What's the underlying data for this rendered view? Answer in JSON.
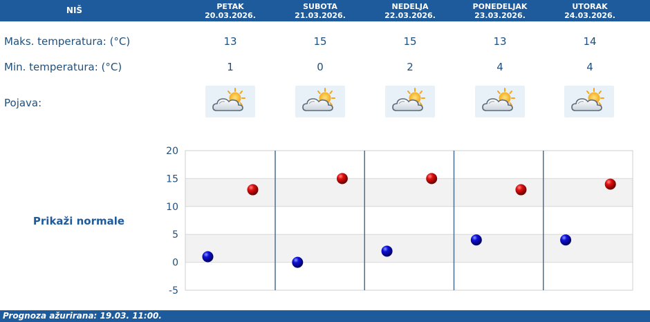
{
  "city": "NIŠ",
  "days": [
    {
      "name": "PETAK",
      "date": "20.03.2026.",
      "max": "13",
      "min": "1"
    },
    {
      "name": "SUBOTA",
      "date": "21.03.2026.",
      "max": "15",
      "min": "0"
    },
    {
      "name": "NEDELJA",
      "date": "22.03.2026.",
      "max": "15",
      "min": "2"
    },
    {
      "name": "PONEDELJAK",
      "date": "23.03.2026.",
      "max": "13",
      "min": "4"
    },
    {
      "name": "UTORAK",
      "date": "24.03.2026.",
      "max": "14",
      "min": "4"
    }
  ],
  "labels": {
    "max": "Maks. temperatura: (°C)",
    "min": "Min. temperatura: (°C)",
    "phenomenon": "Pojava:"
  },
  "icons": [
    "partly-cloudy-icon",
    "partly-cloudy-icon",
    "partly-cloudy-icon",
    "partly-cloudy-icon",
    "partly-cloudy-icon"
  ],
  "show_normals": "Prikaži normale",
  "footer": "Prognoza ažurirana:  19.03. 11:00.",
  "colors": {
    "header": "#1d5b9c",
    "text": "#1e4f7d",
    "max_marker": "#cc0000",
    "min_marker": "#0000cc"
  },
  "chart_data": {
    "type": "scatter",
    "categories": [
      "PETAK",
      "SUBOTA",
      "NEDELJA",
      "PONEDELJAK",
      "UTORAK"
    ],
    "series": [
      {
        "values": [
          13,
          15,
          15,
          13,
          14
        ],
        "color": "#cc0000"
      },
      {
        "values": [
          1,
          0,
          2,
          4,
          4
        ],
        "color": "#0000cc"
      }
    ],
    "ylim": [
      -5,
      20
    ],
    "yticks": [
      "20",
      "15",
      "10",
      "5",
      "0",
      "-5"
    ],
    "grid": true,
    "xlabel": "",
    "ylabel": ""
  }
}
